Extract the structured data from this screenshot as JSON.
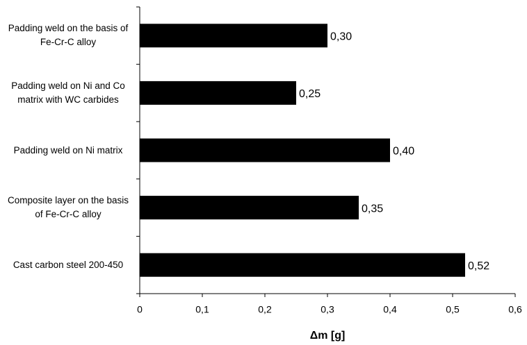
{
  "chart_data": {
    "type": "barh",
    "x_label": "Δm [g]",
    "categories": [
      "Padding weld on the basis of Fe-Cr-C alloy",
      "Padding weld on Ni and Co matrix with WC carbides",
      "Padding weld on Ni matrix",
      "Composite layer on the basis of Fe-Cr-C alloy",
      "Cast carbon steel 200-450"
    ],
    "values": [
      0.3,
      0.25,
      0.4,
      0.35,
      0.52
    ],
    "value_labels": [
      "0,30",
      "0,25",
      "0,40",
      "0,35",
      "0,52"
    ],
    "color": "#000000",
    "xlim": [
      0,
      0.6
    ],
    "xticks": [
      0,
      {
        "value": 0.1,
        "label": "0,1"
      },
      {
        "value": 0.2,
        "label": "0,2"
      },
      {
        "value": 0.3,
        "label": "0,3"
      },
      {
        "value": 0.4,
        "label": "0,4"
      },
      {
        "value": 0.5,
        "label": "0,5"
      },
      {
        "value": 0.6,
        "label": "0,6"
      }
    ]
  }
}
